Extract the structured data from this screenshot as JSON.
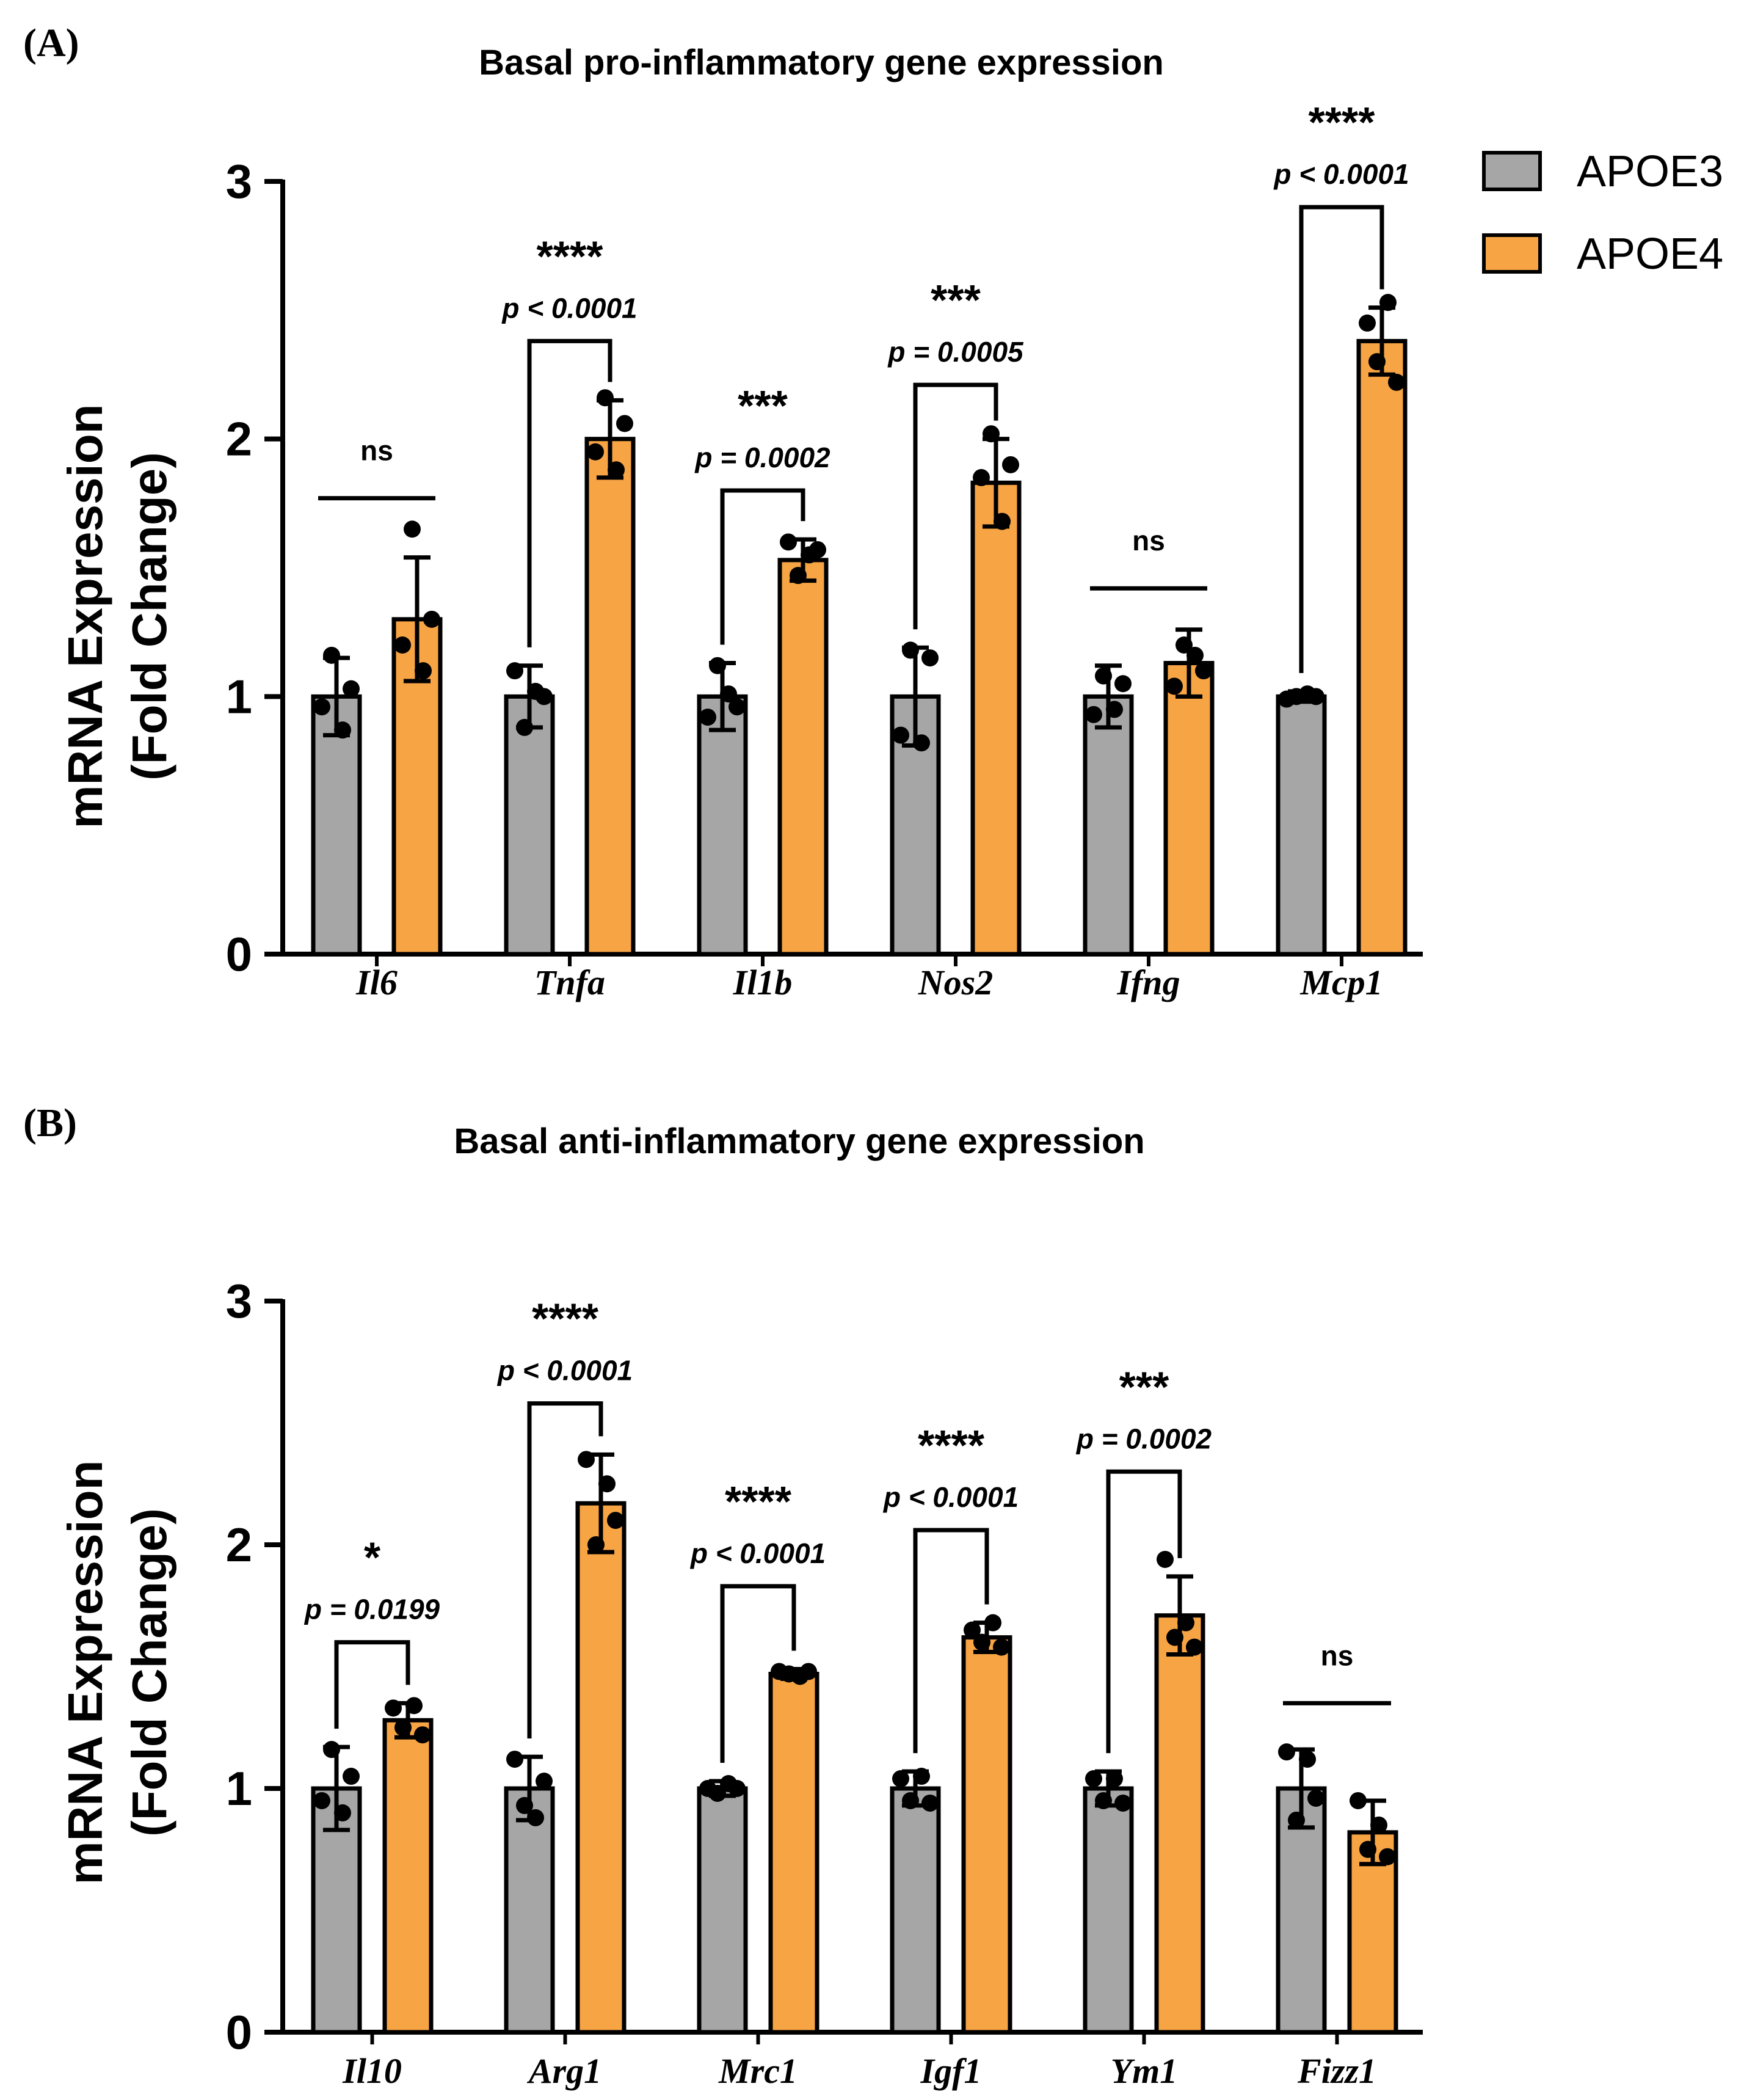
{
  "legend": [
    {
      "name": "APOE3",
      "color": "#a6a6a6"
    },
    {
      "name": "APOE4",
      "color": "#f7a444"
    }
  ],
  "chart_data": [
    {
      "panel_label": "(A)",
      "type": "bar",
      "title": "Basal pro-inflammatory gene expression",
      "ylabel_line1": "mRNA Expression",
      "ylabel_line2": "(Fold Change)",
      "ylim": [
        0,
        3
      ],
      "yticks": [
        "0",
        "1",
        "2",
        "3"
      ],
      "categories": [
        "Il6",
        "Tnfa",
        "Il1b",
        "Nos2",
        "Ifng",
        "Mcp1"
      ],
      "series": [
        {
          "name": "APOE3",
          "values": [
            1.0,
            1.0,
            1.0,
            1.0,
            1.0,
            1.0
          ],
          "errors": [
            0.15,
            0.12,
            0.13,
            0.19,
            0.12,
            0.02
          ],
          "points": [
            [
              0.96,
              1.16,
              0.87,
              1.03
            ],
            [
              1.1,
              0.88,
              1.02,
              1.0
            ],
            [
              0.92,
              1.12,
              1.01,
              0.96
            ],
            [
              0.85,
              1.18,
              0.82,
              1.15
            ],
            [
              0.93,
              1.08,
              0.95,
              1.05
            ],
            [
              0.99,
              1.0,
              1.01,
              1.0
            ]
          ]
        },
        {
          "name": "APOE4",
          "values": [
            1.3,
            2.0,
            1.53,
            1.83,
            1.13,
            2.38
          ],
          "errors": [
            0.24,
            0.15,
            0.08,
            0.17,
            0.13,
            0.13
          ],
          "points": [
            [
              1.2,
              1.65,
              1.1,
              1.3
            ],
            [
              1.95,
              2.16,
              1.88,
              2.06
            ],
            [
              1.6,
              1.47,
              1.55,
              1.57
            ],
            [
              1.85,
              2.02,
              1.68,
              1.9
            ],
            [
              1.04,
              1.2,
              1.16,
              1.1
            ],
            [
              2.45,
              2.3,
              2.53,
              2.22
            ]
          ]
        }
      ],
      "annotations": [
        {
          "stars": "ns",
          "p": "",
          "bracket": false,
          "y_bracket": 1.77
        },
        {
          "stars": "****",
          "p": "p < 0.0001",
          "bracket": true,
          "y_bracket": 2.38
        },
        {
          "stars": "***",
          "p": "p = 0.0002",
          "bracket": true,
          "y_bracket": 1.8
        },
        {
          "stars": "***",
          "p": "p = 0.0005",
          "bracket": true,
          "y_bracket": 2.21
        },
        {
          "stars": "ns",
          "p": "",
          "bracket": false,
          "y_bracket": 1.42
        },
        {
          "stars": "****",
          "p": "p < 0.0001",
          "bracket": true,
          "y_bracket": 2.9
        }
      ]
    },
    {
      "panel_label": "(B)",
      "type": "bar",
      "title": "Basal anti-inflammatory gene expression",
      "ylabel_line1": "mRNA Expression",
      "ylabel_line2": "(Fold Change)",
      "ylim": [
        0,
        3
      ],
      "yticks": [
        "0",
        "1",
        "2",
        "3"
      ],
      "categories": [
        "Il10",
        "Arg1",
        "Mrc1",
        "Igf1",
        "Ym1",
        "Fizz1"
      ],
      "series": [
        {
          "name": "APOE3",
          "values": [
            1.0,
            1.0,
            1.0,
            1.0,
            1.0,
            1.0
          ],
          "errors": [
            0.17,
            0.13,
            0.03,
            0.07,
            0.07,
            0.16
          ],
          "points": [
            [
              0.95,
              1.16,
              0.9,
              1.05
            ],
            [
              1.12,
              0.93,
              0.88,
              1.03
            ],
            [
              1.0,
              0.98,
              1.02,
              1.0
            ],
            [
              1.04,
              0.95,
              1.05,
              0.94
            ],
            [
              1.04,
              0.95,
              1.04,
              0.94
            ],
            [
              1.15,
              0.87,
              1.12,
              0.96
            ]
          ]
        },
        {
          "name": "APOE4",
          "values": [
            1.28,
            2.17,
            1.47,
            1.62,
            1.71,
            0.82
          ],
          "errors": [
            0.07,
            0.2,
            0.02,
            0.06,
            0.16,
            0.13
          ],
          "points": [
            [
              1.33,
              1.25,
              1.34,
              1.22
            ],
            [
              2.35,
              2.0,
              2.25,
              2.1
            ],
            [
              1.48,
              1.47,
              1.46,
              1.48
            ],
            [
              1.65,
              1.6,
              1.68,
              1.58
            ],
            [
              1.94,
              1.62,
              1.68,
              1.58
            ],
            [
              0.95,
              0.75,
              0.85,
              0.72
            ]
          ]
        }
      ],
      "annotations": [
        {
          "stars": "*",
          "p": "p = 0.0199",
          "bracket": true,
          "y_bracket": 1.6
        },
        {
          "stars": "****",
          "p": "p < 0.0001",
          "bracket": true,
          "y_bracket": 2.58
        },
        {
          "stars": "****",
          "p": "p < 0.0001",
          "bracket": true,
          "y_bracket": 1.83
        },
        {
          "stars": "****",
          "p": "p < 0.0001",
          "bracket": true,
          "y_bracket": 2.06
        },
        {
          "stars": "***",
          "p": "p = 0.0002",
          "bracket": true,
          "y_bracket": 2.3
        },
        {
          "stars": "ns",
          "p": "",
          "bracket": false,
          "y_bracket": 1.35
        }
      ]
    }
  ]
}
